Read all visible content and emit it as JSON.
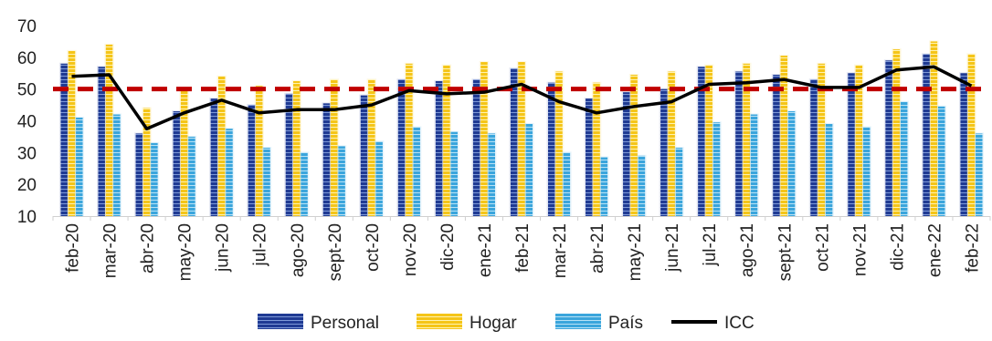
{
  "chart_data": {
    "type": "bar",
    "categories": [
      "feb-20",
      "mar-20",
      "abr-20",
      "may-20",
      "jun-20",
      "jul-20",
      "ago-20",
      "sept-20",
      "oct-20",
      "nov-20",
      "dic-20",
      "ene-21",
      "feb-21",
      "mar-21",
      "abr-21",
      "may-21",
      "jun-21",
      "jul-21",
      "ago-21",
      "sept-21",
      "oct-21",
      "nov-21",
      "dic-21",
      "ene-22",
      "feb-22"
    ],
    "series": [
      {
        "name": "Personal",
        "type": "bar",
        "color": "#1f3a93",
        "values": [
          58,
          57,
          36,
          43,
          47,
          45,
          48.5,
          45.5,
          48,
          53,
          52.5,
          53,
          56.5,
          52,
          47,
          49,
          50,
          57,
          55.5,
          54.5,
          53,
          55,
          59,
          61,
          55
        ]
      },
      {
        "name": "Hogar",
        "type": "bar",
        "color": "#f5c518",
        "values": [
          62,
          64,
          44,
          50,
          54,
          51,
          52.5,
          53,
          53,
          58,
          57.5,
          58.5,
          58.5,
          55.5,
          52,
          54.5,
          55.5,
          57.5,
          58,
          60.5,
          58,
          57.5,
          62.5,
          65,
          61
        ]
      },
      {
        "name": "País",
        "type": "bar",
        "color": "#3aa5dc",
        "values": [
          41,
          42,
          33,
          35,
          37.5,
          31.5,
          30,
          32,
          33.5,
          38,
          36.5,
          36,
          39,
          30,
          28.5,
          29,
          31.5,
          39.5,
          42,
          43,
          39,
          38,
          46,
          44.5,
          36
        ]
      },
      {
        "name": "ICC",
        "type": "line",
        "color": "#000000",
        "values": [
          54,
          54.5,
          37.5,
          42.5,
          46.5,
          42.5,
          43.5,
          43.5,
          45,
          49.5,
          48.5,
          49,
          51.5,
          46,
          42.5,
          44.5,
          46,
          51.5,
          52,
          53,
          50.5,
          50.5,
          56,
          57,
          51
        ]
      }
    ],
    "reference_line": {
      "value": 50,
      "color": "#c00000",
      "style": "dashed"
    },
    "ylim": [
      10,
      70
    ],
    "yticks": [
      10,
      20,
      30,
      40,
      50,
      60,
      70
    ],
    "legend_position": "bottom",
    "grid": false,
    "title": "",
    "xlabel": "",
    "ylabel": ""
  }
}
